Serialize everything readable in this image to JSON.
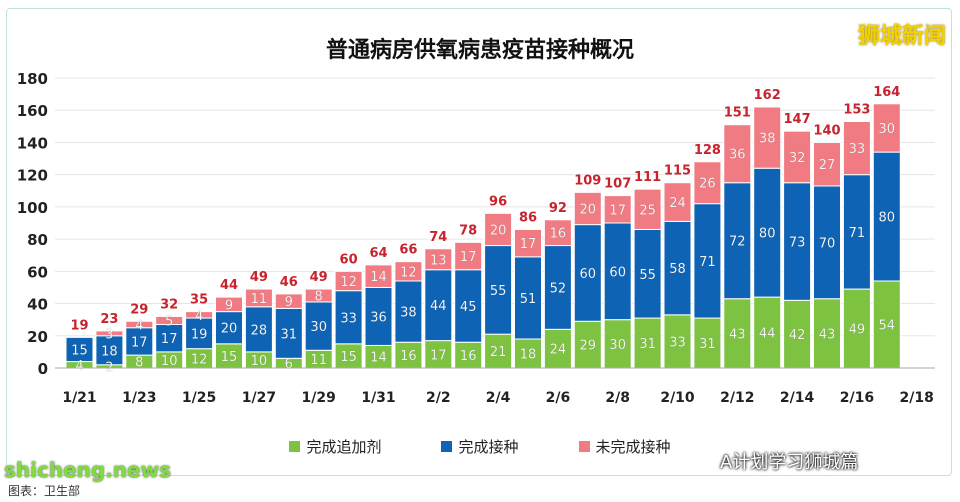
{
  "logo": "狮城新闻",
  "watermarks": {
    "site": "shicheng.news",
    "account": "A计划学习狮城篇",
    "source": "图表：卫生部"
  },
  "chart_data": {
    "type": "bar",
    "stacked": true,
    "title": "普通病房供氧病患疫苗接种概况",
    "xlabel": "",
    "ylabel": "",
    "ylim": [
      0,
      180
    ],
    "yticks": [
      0,
      20,
      40,
      60,
      80,
      100,
      120,
      140,
      160,
      180
    ],
    "grid": true,
    "legend": "bottom",
    "categories": [
      "1/21",
      "1/22",
      "1/23",
      "1/24",
      "1/25",
      "1/26",
      "1/27",
      "1/28",
      "1/29",
      "1/30",
      "1/31",
      "2/1",
      "2/2",
      "2/3",
      "2/4",
      "2/5",
      "2/6",
      "2/7",
      "2/8",
      "2/9",
      "2/10",
      "2/11",
      "2/12",
      "2/13",
      "2/14",
      "2/15",
      "2/16",
      "2/17"
    ],
    "xtick_labels": [
      "1/21",
      "1/23",
      "1/25",
      "1/27",
      "1/29",
      "1/31",
      "2/2",
      "2/4",
      "2/6",
      "2/8",
      "2/10",
      "2/12",
      "2/14",
      "2/16",
      "2/18"
    ],
    "series": [
      {
        "name": "完成追加剂",
        "color": "#7ec242",
        "values": [
          4,
          2,
          8,
          10,
          12,
          15,
          10,
          6,
          11,
          15,
          14,
          16,
          17,
          16,
          21,
          18,
          24,
          29,
          30,
          31,
          33,
          31,
          43,
          44,
          42,
          43,
          49,
          54
        ]
      },
      {
        "name": "完成接种",
        "color": "#0e63b5",
        "values": [
          15,
          18,
          17,
          17,
          19,
          20,
          28,
          31,
          30,
          33,
          36,
          38,
          44,
          45,
          55,
          51,
          52,
          60,
          60,
          55,
          58,
          71,
          72,
          80,
          73,
          70,
          71,
          80
        ]
      },
      {
        "name": "未完成接种",
        "color": "#f07b82",
        "values": [
          0,
          3,
          4,
          5,
          4,
          9,
          11,
          9,
          8,
          12,
          14,
          12,
          13,
          17,
          20,
          17,
          16,
          20,
          17,
          25,
          24,
          26,
          36,
          38,
          32,
          27,
          33,
          30
        ]
      }
    ],
    "totals": [
      19,
      23,
      29,
      32,
      35,
      44,
      49,
      46,
      49,
      60,
      64,
      66,
      74,
      78,
      96,
      86,
      92,
      109,
      107,
      111,
      115,
      128,
      151,
      162,
      147,
      140,
      153,
      164
    ],
    "total_label_color": "#c8232c"
  }
}
